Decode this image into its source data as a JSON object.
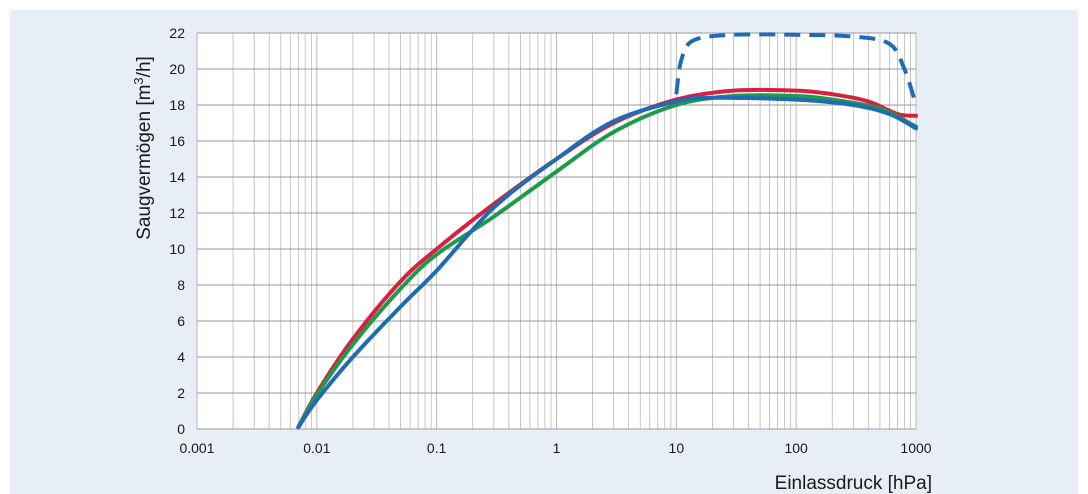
{
  "chart_data": {
    "type": "line",
    "xscale": "log",
    "xlim": [
      0.001,
      1000
    ],
    "ylim": [
      0,
      22
    ],
    "xlabel": "Einlassdruck [hPa]",
    "ylabel": "Saugvermögen [m³/h]",
    "ylabel_parts": {
      "before": "Saugvermögen [m",
      "sup": "3",
      "after": "/h]"
    },
    "xticks": [
      0.001,
      0.01,
      0.1,
      1,
      10,
      100,
      1000
    ],
    "xtick_labels": [
      "0.001",
      "0.01",
      "0.1",
      "1",
      "10",
      "100",
      "1000"
    ],
    "yticks": [
      0,
      2,
      4,
      6,
      8,
      10,
      12,
      14,
      16,
      18,
      20,
      22
    ],
    "grid": true,
    "legend": "none",
    "series": [
      {
        "color": "#d9203f",
        "style": "solid",
        "points": [
          [
            0.007,
            0.1
          ],
          [
            0.01,
            2.0
          ],
          [
            0.02,
            5.0
          ],
          [
            0.05,
            8.2
          ],
          [
            0.1,
            10.0
          ],
          [
            0.3,
            12.5
          ],
          [
            1,
            15.0
          ],
          [
            3,
            17.0
          ],
          [
            10,
            18.3
          ],
          [
            30,
            18.8
          ],
          [
            100,
            18.8
          ],
          [
            200,
            18.6
          ],
          [
            400,
            18.2
          ],
          [
            700,
            17.5
          ],
          [
            1000,
            17.4
          ]
        ]
      },
      {
        "color": "#1e9a4a",
        "style": "solid",
        "points": [
          [
            0.007,
            0.1
          ],
          [
            0.01,
            1.9
          ],
          [
            0.02,
            4.7
          ],
          [
            0.05,
            7.8
          ],
          [
            0.1,
            9.7
          ],
          [
            0.3,
            11.8
          ],
          [
            1,
            14.3
          ],
          [
            3,
            16.5
          ],
          [
            10,
            18.0
          ],
          [
            30,
            18.5
          ],
          [
            100,
            18.5
          ],
          [
            200,
            18.3
          ],
          [
            500,
            17.8
          ],
          [
            1000,
            16.8
          ]
        ]
      },
      {
        "color": "#1f6cb4",
        "style": "solid",
        "points": [
          [
            0.007,
            0.1
          ],
          [
            0.01,
            1.6
          ],
          [
            0.02,
            4.0
          ],
          [
            0.05,
            6.8
          ],
          [
            0.1,
            8.8
          ],
          [
            0.3,
            12.3
          ],
          [
            1,
            15.0
          ],
          [
            3,
            17.1
          ],
          [
            10,
            18.2
          ],
          [
            20,
            18.4
          ],
          [
            100,
            18.3
          ],
          [
            300,
            18.0
          ],
          [
            600,
            17.5
          ],
          [
            1000,
            16.7
          ]
        ]
      },
      {
        "color": "#1f6cb4",
        "style": "dashed",
        "points": [
          [
            10,
            18.6
          ],
          [
            11,
            20.5
          ],
          [
            14,
            21.6
          ],
          [
            30,
            21.9
          ],
          [
            100,
            21.9
          ],
          [
            300,
            21.8
          ],
          [
            600,
            21.4
          ],
          [
            800,
            20.0
          ],
          [
            1000,
            18.0
          ]
        ]
      }
    ]
  }
}
